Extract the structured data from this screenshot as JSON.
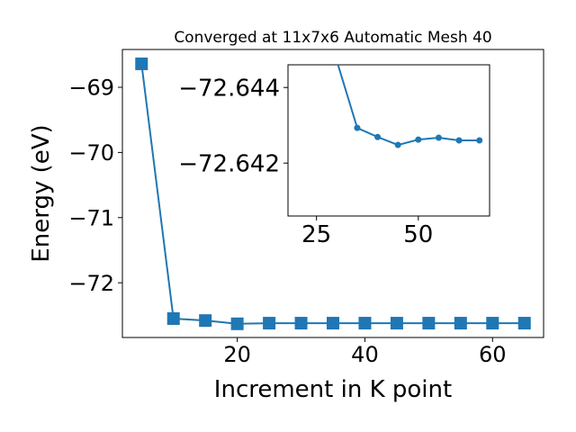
{
  "chart_data": [
    {
      "type": "line",
      "title": "Converged at 11x7x6 Automatic Mesh 40",
      "xlabel": "Increment in K point",
      "ylabel": "Energy (eV)",
      "marker": "square",
      "color": "#1f77b4",
      "x": [
        5,
        10,
        15,
        20,
        25,
        30,
        35,
        40,
        45,
        50,
        55,
        60,
        65
      ],
      "values": [
        -68.64,
        -72.55,
        -72.58,
        -72.63,
        -72.62,
        -72.62,
        -72.62,
        -72.62,
        -72.62,
        -72.62,
        -72.62,
        -72.62,
        -72.62
      ],
      "xlim": [
        2,
        68
      ],
      "ylim": [
        -72.84,
        -68.42
      ],
      "xticks": [
        20,
        40,
        60
      ],
      "yticks": [
        {
          "value": -72,
          "label": "−72"
        },
        {
          "value": -71,
          "label": "−71"
        },
        {
          "value": -70,
          "label": "−70"
        },
        {
          "value": -69,
          "label": "−69"
        }
      ]
    },
    {
      "type": "line",
      "marker": "circle",
      "color": "#1f77b4",
      "x": [
        30,
        35,
        40,
        45,
        50,
        55,
        60,
        65
      ],
      "values": [
        -72.6447,
        -72.64293,
        -72.64269,
        -72.64248,
        -72.64262,
        -72.64267,
        -72.6426,
        -72.6426
      ],
      "xlim": [
        18,
        67.5
      ],
      "ylim": [
        -72.6406,
        -72.6446
      ],
      "xticks": [
        25,
        50
      ],
      "yticks": [
        {
          "value": -72.644,
          "label": "−72.644"
        },
        {
          "value": -72.642,
          "label": "−72.642"
        }
      ]
    }
  ]
}
